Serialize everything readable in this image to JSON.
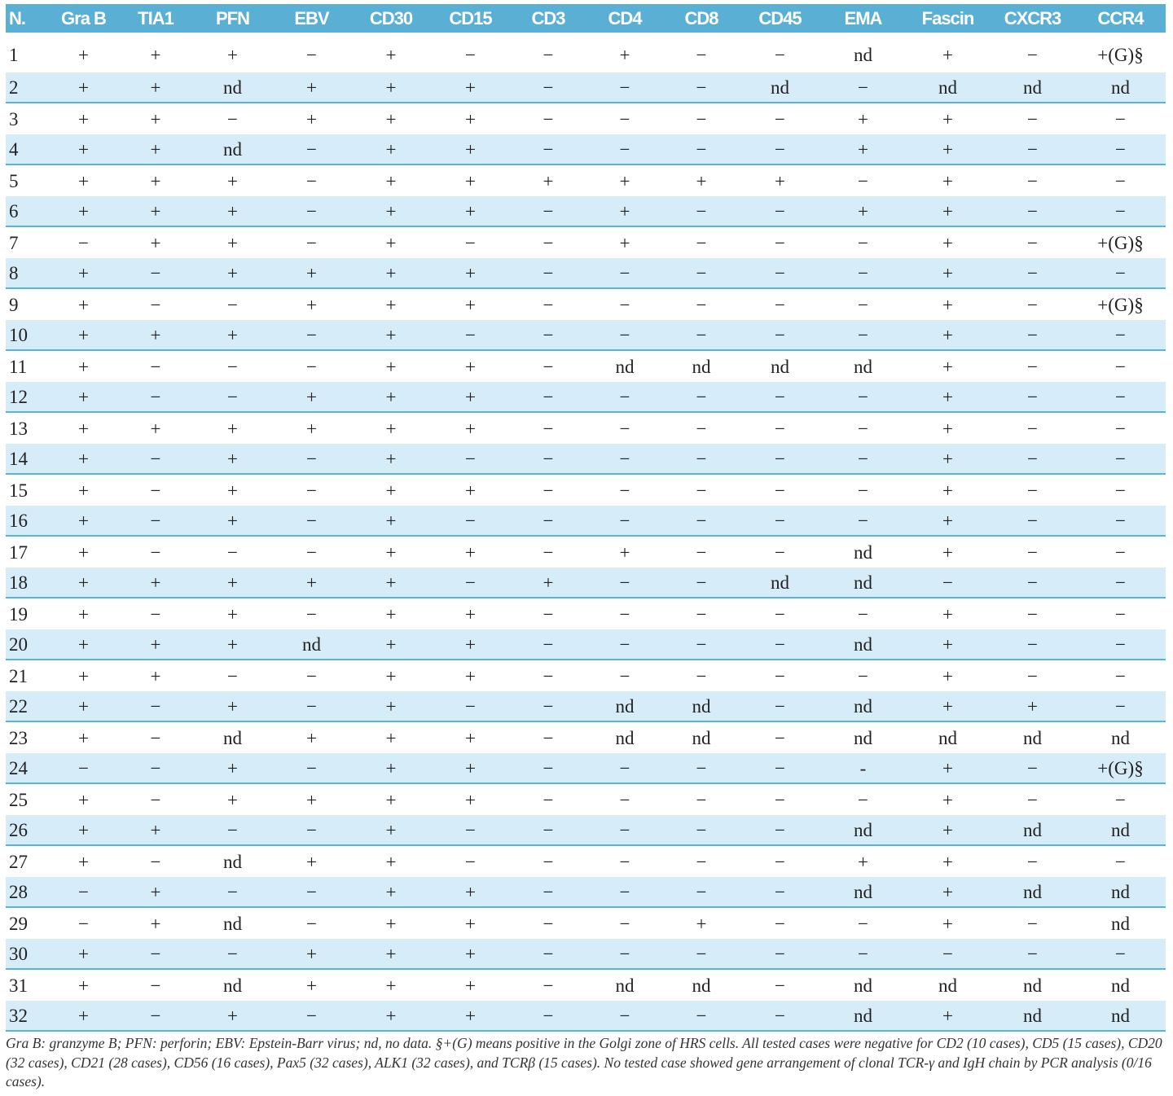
{
  "header": [
    "N.",
    "Gra B",
    "TIA1",
    "PFN",
    "EBV",
    "CD30",
    "CD15",
    "CD3",
    "CD4",
    "CD8",
    "CD45",
    "EMA",
    "Fascin",
    "CXCR3",
    "CCR4"
  ],
  "rows": [
    [
      "1",
      "+",
      "+",
      "+",
      "−",
      "+",
      "−",
      "−",
      "+",
      "−",
      "−",
      "nd",
      "+",
      "−",
      "+(G)§"
    ],
    [
      "2",
      "+",
      "+",
      "nd",
      "+",
      "+",
      "+",
      "−",
      "−",
      "−",
      "nd",
      "−",
      "nd",
      "nd",
      "nd"
    ],
    [
      "3",
      "+",
      "+",
      "−",
      "+",
      "+",
      "+",
      "−",
      "−",
      "−",
      "−",
      "+",
      "+",
      "−",
      "−"
    ],
    [
      "4",
      "+",
      "+",
      "nd",
      "−",
      "+",
      "+",
      "−",
      "−",
      "−",
      "−",
      "+",
      "+",
      "−",
      "−"
    ],
    [
      "5",
      "+",
      "+",
      "+",
      "−",
      "+",
      "+",
      "+",
      "+",
      "+",
      "+",
      "−",
      "+",
      "−",
      "−"
    ],
    [
      "6",
      "+",
      "+",
      "+",
      "−",
      "+",
      "+",
      "−",
      "+",
      "−",
      "−",
      "+",
      "+",
      "−",
      "−"
    ],
    [
      "7",
      "−",
      "+",
      "+",
      "−",
      "+",
      "−",
      "−",
      "+",
      "−",
      "−",
      "−",
      "+",
      "−",
      "+(G)§"
    ],
    [
      "8",
      "+",
      "−",
      "+",
      "+",
      "+",
      "+",
      "−",
      "−",
      "−",
      "−",
      "−",
      "+",
      "−",
      "−"
    ],
    [
      "9",
      "+",
      "−",
      "−",
      "+",
      "+",
      "+",
      "−",
      "−",
      "−",
      "−",
      "−",
      "+",
      "−",
      "+(G)§"
    ],
    [
      "10",
      "+",
      "+",
      "+",
      "−",
      "+",
      "−",
      "−",
      "−",
      "−",
      "−",
      "−",
      "+",
      "−",
      "−"
    ],
    [
      "11",
      "+",
      "−",
      "−",
      "−",
      "+",
      "+",
      "−",
      "nd",
      "nd",
      "nd",
      "nd",
      "+",
      "−",
      "−"
    ],
    [
      "12",
      "+",
      "−",
      "−",
      "+",
      "+",
      "+",
      "−",
      "−",
      "−",
      "−",
      "−",
      "+",
      "−",
      "−"
    ],
    [
      "13",
      "+",
      "+",
      "+",
      "+",
      "+",
      "+",
      "−",
      "−",
      "−",
      "−",
      "−",
      "+",
      "−",
      "−"
    ],
    [
      "14",
      "+",
      "−",
      "+",
      "−",
      "+",
      "−",
      "−",
      "−",
      "−",
      "−",
      "−",
      "+",
      "−",
      "−"
    ],
    [
      "15",
      "+",
      "−",
      "+",
      "−",
      "+",
      "+",
      "−",
      "−",
      "−",
      "−",
      "−",
      "+",
      "−",
      "−"
    ],
    [
      "16",
      "+",
      "−",
      "+",
      "−",
      "+",
      "−",
      "−",
      "−",
      "−",
      "−",
      "−",
      "+",
      "−",
      "−"
    ],
    [
      "17",
      "+",
      "−",
      "−",
      "−",
      "+",
      "+",
      "−",
      "+",
      "−",
      "−",
      "nd",
      "+",
      "−",
      "−"
    ],
    [
      "18",
      "+",
      "+",
      "+",
      "+",
      "+",
      "−",
      "+",
      "−",
      "−",
      "nd",
      "nd",
      "−",
      "−",
      "−"
    ],
    [
      "19",
      "+",
      "−",
      "+",
      "−",
      "+",
      "+",
      "−",
      "−",
      "−",
      "−",
      "−",
      "+",
      "−",
      "−"
    ],
    [
      "20",
      "+",
      "+",
      "+",
      "nd",
      "+",
      "+",
      "−",
      "−",
      "−",
      "−",
      "nd",
      "+",
      "−",
      "−"
    ],
    [
      "21",
      "+",
      "+",
      "−",
      "−",
      "+",
      "+",
      "−",
      "−",
      "−",
      "−",
      "−",
      "+",
      "−",
      "−"
    ],
    [
      "22",
      "+",
      "−",
      "+",
      "−",
      "+",
      "−",
      "−",
      "nd",
      "nd",
      "−",
      "nd",
      "+",
      "+",
      "−"
    ],
    [
      "23",
      "+",
      "−",
      "nd",
      "+",
      "+",
      "+",
      "−",
      "nd",
      "nd",
      "−",
      "nd",
      "nd",
      "nd",
      "nd"
    ],
    [
      "24",
      "−",
      "−",
      "+",
      "−",
      "+",
      "+",
      "−",
      "−",
      "−",
      "−",
      "-",
      "+",
      "−",
      "+(G)§"
    ],
    [
      "25",
      "+",
      "−",
      "+",
      "+",
      "+",
      "+",
      "−",
      "−",
      "−",
      "−",
      "−",
      "+",
      "−",
      "−"
    ],
    [
      "26",
      "+",
      "+",
      "−",
      "−",
      "+",
      "−",
      "−",
      "−",
      "−",
      "−",
      "nd",
      "+",
      "nd",
      "nd"
    ],
    [
      "27",
      "+",
      "−",
      "nd",
      "+",
      "+",
      "−",
      "−",
      "−",
      "−",
      "−",
      "+",
      "+",
      "−",
      "−"
    ],
    [
      "28",
      "−",
      "+",
      "−",
      "−",
      "+",
      "+",
      "−",
      "−",
      "−",
      "−",
      "nd",
      "+",
      "nd",
      "nd"
    ],
    [
      "29",
      "−",
      "+",
      "nd",
      "−",
      "+",
      "+",
      "−",
      "−",
      "+",
      "−",
      "−",
      "+",
      "−",
      "nd"
    ],
    [
      "30",
      "+",
      "−",
      "−",
      "+",
      "+",
      "+",
      "−",
      "−",
      "−",
      "−",
      "−",
      "−",
      "−",
      "−"
    ],
    [
      "31",
      "+",
      "−",
      "nd",
      "+",
      "+",
      "+",
      "−",
      "nd",
      "nd",
      "−",
      "nd",
      "nd",
      "nd",
      "nd"
    ],
    [
      "32",
      "+",
      "−",
      "+",
      "−",
      "+",
      "+",
      "−",
      "−",
      "−",
      "−",
      "nd",
      "+",
      "nd",
      "nd"
    ]
  ],
  "footnote": "Gra B: granzyme B; PFN: perforin; EBV: Epstein-Barr virus; nd, no data. §+(G) means positive in the Golgi zone of HRS cells. All tested cases were negative for CD2 (10 cases), CD5 (15 cases), CD20 (32 cases), CD21 (28 cases), CD56 (16 cases), Pax5 (32 cases), ALK1 (32 cases), and TCRβ (15 cases). No tested case showed gene arrangement of clonal TCR-γ and IgH chain by PCR analysis (0/16 cases).",
  "colors": {
    "header_bg": "#5aafd4",
    "stripe_bg": "#d6ecf8",
    "rule": "#5ab4da"
  }
}
